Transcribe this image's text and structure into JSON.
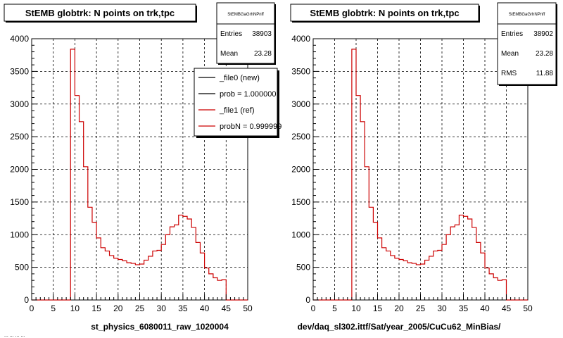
{
  "chart_data": [
    {
      "type": "histogram",
      "title": "StEMB globtrk: N points on trk,tpc",
      "xlabel": "st_physics_6080011_raw_1020004",
      "xlim": [
        0,
        50
      ],
      "ylim": [
        0,
        4000
      ],
      "x_ticks": [
        "0",
        "5",
        "10",
        "15",
        "20",
        "25",
        "30",
        "35",
        "40",
        "45",
        "50"
      ],
      "y_ticks": [
        "0",
        "500",
        "1000",
        "1500",
        "2000",
        "2500",
        "3000",
        "3500",
        "4000"
      ],
      "grid": true,
      "bin_width": 1,
      "x_start": 0,
      "values": [
        0,
        0,
        0,
        0,
        0,
        0,
        0,
        0,
        0,
        3840,
        3130,
        2730,
        2040,
        1420,
        1190,
        950,
        800,
        750,
        680,
        640,
        620,
        600,
        570,
        560,
        540,
        550,
        610,
        670,
        750,
        760,
        850,
        1000,
        1120,
        1150,
        1300,
        1280,
        1240,
        1110,
        880,
        720,
        490,
        400,
        340,
        300,
        310,
        0,
        0,
        0,
        0,
        0
      ],
      "stats": {
        "name": "StEMBGaGrhNPnff",
        "rows": [
          {
            "label": "Entries",
            "value": "38903"
          },
          {
            "label": "Mean",
            "value": "23.28"
          }
        ]
      },
      "legend": {
        "placement": "top-right",
        "entries": [
          {
            "label": "_file0 (new)",
            "color": "#000000"
          },
          {
            "label": "prob = 1.000000",
            "color": "#000000"
          },
          {
            "label": "_file1 (ref)",
            "color": "#cc0000"
          },
          {
            "label": "probN = 0.999999",
            "color": "#cc0000"
          }
        ]
      },
      "line_color": "#cc0000"
    },
    {
      "type": "histogram",
      "title": "StEMB globtrk: N points on trk,tpc",
      "xlabel": "dev/daq_sl302.ittf/Sat/year_2005/CuCu62_MinBias/",
      "xlim": [
        0,
        50
      ],
      "ylim": [
        0,
        4000
      ],
      "x_ticks": [
        "0",
        "5",
        "10",
        "15",
        "20",
        "25",
        "30",
        "35",
        "40",
        "45",
        "50"
      ],
      "y_ticks": [
        "0",
        "500",
        "1000",
        "1500",
        "2000",
        "2500",
        "3000",
        "3500",
        "4000"
      ],
      "grid": true,
      "bin_width": 1,
      "x_start": 0,
      "values": [
        0,
        0,
        0,
        0,
        0,
        0,
        0,
        0,
        0,
        3840,
        3130,
        2730,
        2040,
        1420,
        1190,
        950,
        800,
        750,
        680,
        640,
        620,
        600,
        570,
        560,
        540,
        550,
        610,
        670,
        750,
        760,
        850,
        1000,
        1120,
        1150,
        1300,
        1280,
        1240,
        1110,
        880,
        720,
        490,
        400,
        340,
        300,
        310,
        0,
        0,
        0,
        0,
        0
      ],
      "stats": {
        "name": "StEMBGaGrhNPnff",
        "rows": [
          {
            "label": "Entries",
            "value": "38902"
          },
          {
            "label": "Mean",
            "value": "23.28"
          },
          {
            "label": "RMS",
            "value": "11.88"
          }
        ]
      },
      "line_color": "#cc0000"
    }
  ],
  "footer_text": "... ... ... ..."
}
